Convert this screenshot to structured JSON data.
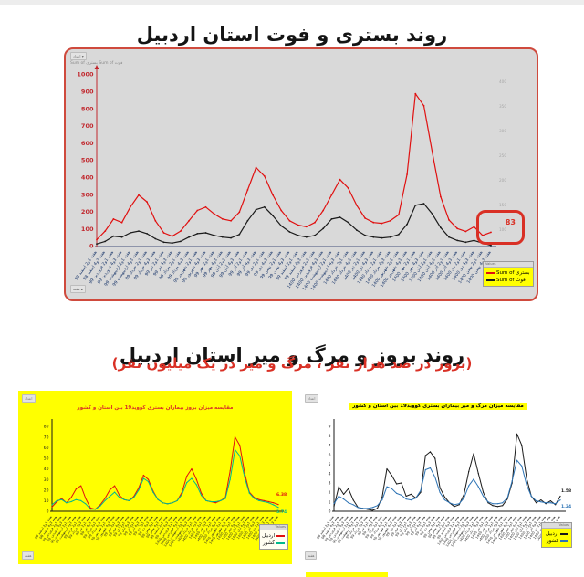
{
  "page": {
    "icons": {
      "dropdown": "▾",
      "up": "▴"
    },
    "colors": {
      "accent_red": "#d93025",
      "line_red": "#e01010",
      "line_black": "#1a1a1a",
      "line_teal": "#00b98e",
      "line_blue": "#2e74b5",
      "xlabel_blue": "#1f3b6e",
      "yellow": "#ffff00"
    },
    "top_section": {
      "title": "روند بستری و فوت استان اردبیل",
      "filter_chip": "اعداد",
      "fields_line": "Sum of بستری   Sum of فوت",
      "week_chip": "هفته",
      "legend_header": "Values",
      "legend": [
        {
          "label": "Sum of بستری"
        },
        {
          "label": "Sum of فوت"
        }
      ],
      "end_annotation": "83"
    },
    "bottom_section": {
      "title": "روند بروز و مرگ و میر استان اردبیل",
      "subtitle": "(بروز در صد هزار نفر ، مرگ و میر در یک میلیون نفر)",
      "left_chart": {
        "filter_chip": "اعداد",
        "week_chip": "هفته",
        "legend_header": "Values",
        "legend": [
          {
            "label": "اردبیل"
          },
          {
            "label": "کشور"
          }
        ],
        "end_values": {
          "province": "6.38",
          "country": "3.74"
        }
      },
      "right_chart": {
        "filter_chip": "اعداد",
        "week_chip": "هفته",
        "legend_header": "Values",
        "legend": [
          {
            "label": "اردبیل"
          },
          {
            "label": "کشور"
          }
        ],
        "end_values": {
          "province": "1.58",
          "country": "1.24"
        }
      }
    }
  },
  "chart_data": [
    {
      "type": "line",
      "name": "hospitalization-death-trend",
      "title": "روند بستری و فوت استان اردبیل",
      "ylabel": "",
      "xlabel": "",
      "ylim": [
        0,
        1000
      ],
      "ystep": 100,
      "grid": false,
      "legend_position": "bottom-right",
      "axis_color": "#c1272d",
      "axis_bold": true,
      "axis_line_color": "#c1272d",
      "axis_arrow": true,
      "baseline_color": "#44507a",
      "xlabel_color": "#1f3b6e",
      "y2_labels": [
        "400",
        "350",
        "300",
        "250",
        "200",
        "150",
        "100"
      ],
      "x_labels": [
        "هفته 1و2 اسفند 98",
        "هفته 3و4 اسفند 98",
        "هفته 1و2 فروردین 99",
        "هفته 3و4 فروردین 99",
        "هفته 1و2 اردیبهشت 99",
        "هفته 3و4 اردیبهشت 99",
        "هفته 1و2 خرداد 99",
        "هفته 3و4 خرداد 99",
        "هفته 1و2 تیر 99",
        "هفته 3و4 تیر 99",
        "هفته 1و2 مرداد 99",
        "هفته 3و4 مرداد 99",
        "هفته 1و2 شهریور 99",
        "هفته 3و4 شهریور 99",
        "هفته 1و2 مهر 99",
        "هفته 3و4 مهر 99",
        "هفته 1و2 آبان 99",
        "هفته 3و4 آبان 99",
        "هفته 1و2 آذر 99",
        "هفته 3و4 آذر 99",
        "هفته 1و2 دی 99",
        "هفته 3و4 دی 99",
        "هفته 1و2 بهمن 99",
        "هفته 3و4 بهمن 99",
        "هفته 1و2 اسفند 99",
        "هفته 3و4 اسفند 99",
        "هفته 1و2 فروردین 1400",
        "هفته 3و4 فروردین 1400",
        "هفته 1و2 اردیبهشت 1400",
        "هفته 3و4 اردیبهشت 1400",
        "هفته 1و2 خرداد 1400",
        "هفته 3و4 خرداد 1400",
        "هفته 1و2 تیر 1400",
        "هفته 3و4 تیر 1400",
        "هفته 1و2 مرداد 1400",
        "هفته 3و4 مرداد 1400",
        "هفته 1و2 شهریور 1400",
        "هفته 3و4 شهریور 1400",
        "هفته 1و2 مهر 1400",
        "هفته 3و4 مهر 1400",
        "هفته 1و2 آبان 1400",
        "هفته 3و4 آبان 1400",
        "هفته 1و2 آذر 1400",
        "هفته 3و4 آذر 1400",
        "هفته 1و2 دی 1400",
        "هفته 3و4 دی 1400",
        "هفته 1و2 بهمن 1400",
        "هفته 3و4 بهمن 1400"
      ],
      "series": [
        {
          "name": "Sum of بستری",
          "color": "#e01010",
          "markers": true,
          "values": [
            40,
            90,
            160,
            140,
            230,
            300,
            260,
            150,
            80,
            60,
            90,
            150,
            210,
            230,
            190,
            160,
            150,
            200,
            330,
            460,
            410,
            300,
            210,
            150,
            125,
            115,
            140,
            210,
            300,
            390,
            340,
            240,
            165,
            140,
            135,
            150,
            185,
            420,
            890,
            820,
            550,
            290,
            155,
            105,
            88,
            115,
            65,
            83
          ]
        },
        {
          "name": "Sum of فوت",
          "color": "#1a1a1a",
          "markers": true,
          "values": [
            15,
            30,
            60,
            55,
            80,
            90,
            75,
            45,
            25,
            20,
            30,
            55,
            75,
            80,
            65,
            55,
            50,
            70,
            150,
            215,
            230,
            180,
            120,
            85,
            65,
            55,
            65,
            105,
            160,
            170,
            140,
            95,
            65,
            55,
            50,
            55,
            70,
            130,
            240,
            250,
            190,
            110,
            55,
            35,
            25,
            35,
            20,
            7
          ]
        }
      ]
    },
    {
      "type": "line",
      "name": "incidence-comparison",
      "title": "مقایسه میزان بروز بیماران بستری کووید19 بین استان و کشور",
      "ylabel": "",
      "xlabel": "",
      "ylim": [
        0,
        80
      ],
      "ystep": 10,
      "grid": false,
      "legend_position": "bottom-right",
      "axis_color": "#1a1a1a",
      "axis_bold": false,
      "axis_line_color": "#1a1a1a",
      "axis_arrow": false,
      "baseline_color": "#1a1a1a",
      "xlabel_color": "#222222",
      "x_labels_from": 0,
      "series": [
        {
          "name": "اردبیل",
          "color": "#e01010",
          "markers": true,
          "values": [
            4,
            9,
            12,
            8,
            13,
            21,
            24,
            12,
            3,
            2,
            6,
            12,
            20,
            24,
            15,
            11,
            10,
            14,
            22,
            34,
            30,
            19,
            11,
            8,
            7,
            8,
            10,
            18,
            33,
            40,
            30,
            17,
            10,
            9,
            8,
            10,
            13,
            38,
            70,
            62,
            36,
            18,
            13,
            11,
            10,
            9,
            8,
            6.4
          ]
        },
        {
          "name": "کشور",
          "color": "#00b98e",
          "markers": true,
          "values": [
            6,
            10,
            11,
            8,
            9,
            11,
            10,
            7,
            2,
            2,
            5,
            10,
            14,
            18,
            13,
            11,
            10,
            13,
            20,
            31,
            28,
            18,
            11,
            8,
            7,
            8,
            10,
            16,
            27,
            31,
            25,
            15,
            10,
            9,
            9,
            10,
            12,
            30,
            58,
            52,
            32,
            17,
            12,
            10,
            9,
            8,
            6,
            3.7
          ]
        }
      ]
    },
    {
      "type": "line",
      "name": "mortality-comparison",
      "title": "مقایسه میزان مرگ و میر بیماران بستری کووید19 بین استان و کشور",
      "ylabel": "",
      "xlabel": "",
      "ylim": [
        0,
        9
      ],
      "ystep": 1,
      "grid": false,
      "legend_position": "bottom-right",
      "axis_color": "#1a1a1a",
      "axis_bold": false,
      "axis_line_color": "#1a1a1a",
      "axis_arrow": false,
      "baseline_color": "#1a1a1a",
      "xlabel_color": "#222222",
      "x_labels_from": 0,
      "series": [
        {
          "name": "اردبیل",
          "color": "#1a1a1a",
          "markers": true,
          "values": [
            0.5,
            2.6,
            1.8,
            2.4,
            1.2,
            0.4,
            0.3,
            0.2,
            0.1,
            0.3,
            1.5,
            4.5,
            3.8,
            2.9,
            3.0,
            1.6,
            1.8,
            1.4,
            2.0,
            5.9,
            6.3,
            5.6,
            2.5,
            1.5,
            0.9,
            0.5,
            0.7,
            1.8,
            4.2,
            6.1,
            4.0,
            2.0,
            0.9,
            0.6,
            0.5,
            0.6,
            1.3,
            3.0,
            8.2,
            7.0,
            3.5,
            1.6,
            0.9,
            1.2,
            0.8,
            1.1,
            0.7,
            1.6
          ]
        },
        {
          "name": "کشور",
          "color": "#2e74b5",
          "markers": true,
          "values": [
            0.8,
            1.6,
            1.3,
            0.9,
            0.7,
            0.4,
            0.3,
            0.3,
            0.4,
            0.6,
            1.2,
            2.6,
            2.4,
            1.9,
            1.7,
            1.3,
            1.2,
            1.4,
            2.2,
            4.4,
            4.6,
            3.6,
            2.0,
            1.2,
            0.9,
            0.7,
            0.8,
            1.4,
            2.7,
            3.4,
            2.6,
            1.6,
            1.0,
            0.8,
            0.8,
            0.9,
            1.4,
            3.2,
            5.4,
            4.8,
            2.8,
            1.6,
            1.1,
            1.0,
            0.9,
            0.9,
            0.8,
            1.2
          ]
        }
      ]
    }
  ]
}
